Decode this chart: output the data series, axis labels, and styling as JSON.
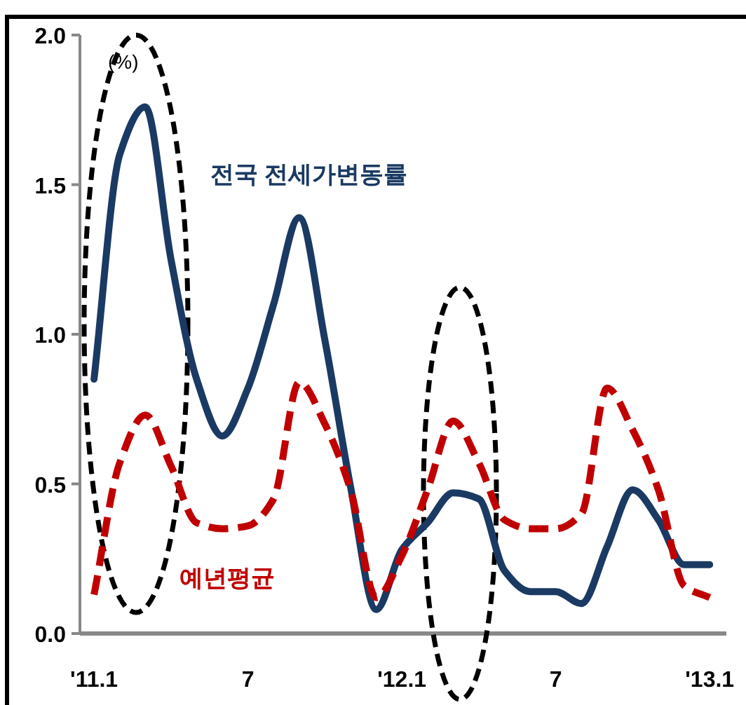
{
  "chart_data": {
    "type": "line",
    "ylabel": "(%)",
    "legend": false,
    "categories": [
      "'11.1",
      null,
      null,
      null,
      null,
      null,
      "7",
      null,
      null,
      null,
      null,
      null,
      "'12.1",
      null,
      null,
      null,
      null,
      null,
      "7",
      null,
      null,
      null,
      null,
      null,
      "'13.1"
    ],
    "ylim": [
      0,
      2
    ],
    "yticks": [
      {
        "value": 0,
        "label": "0.0"
      },
      0.5,
      {
        "value": 1,
        "label": "1.0"
      },
      1.5,
      {
        "value": 2,
        "label": "2.0"
      }
    ],
    "series": [
      {
        "name": "전국 전세가변동률",
        "color": "#1b3a63",
        "line_style": "solid",
        "values": [
          0.85,
          1.6,
          1.76,
          1.25,
          0.85,
          0.66,
          0.82,
          1.1,
          1.39,
          0.98,
          0.49,
          0.08,
          0.28,
          0.37,
          0.47,
          0.45,
          0.21,
          0.14,
          0.14,
          0.1,
          0.29,
          0.48,
          0.38,
          0.23,
          0.23
        ]
      },
      {
        "name": "예년평균",
        "color": "#c00000",
        "line_style": "dashed",
        "values": [
          0.13,
          0.57,
          0.73,
          0.56,
          0.37,
          0.35,
          0.36,
          0.45,
          0.84,
          0.7,
          0.48,
          0.12,
          0.26,
          0.48,
          0.71,
          0.57,
          0.38,
          0.35,
          0.35,
          0.4,
          0.82,
          0.68,
          0.48,
          0.16,
          0.12
        ]
      }
    ]
  }
}
